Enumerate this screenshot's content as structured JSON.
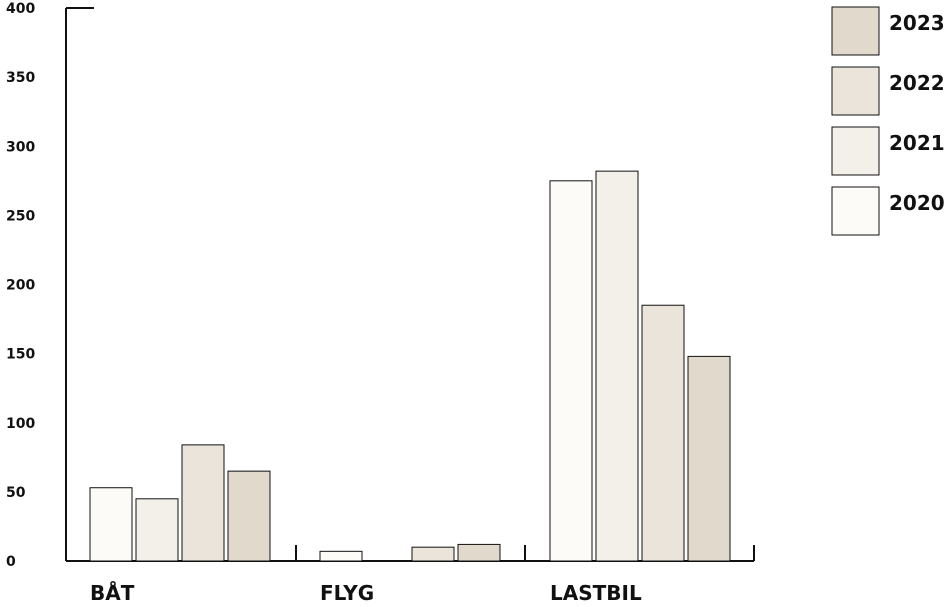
{
  "chart_data": {
    "type": "bar",
    "categories": [
      "BÅT",
      "FLYG",
      "LASTBIL"
    ],
    "series": [
      {
        "name": "2020",
        "values": [
          53,
          7,
          275
        ],
        "color": "#fcfbf8"
      },
      {
        "name": "2021",
        "values": [
          45,
          0,
          282
        ],
        "color": "#f3f0e9"
      },
      {
        "name": "2022",
        "values": [
          84,
          10,
          185
        ],
        "color": "#ebe4da"
      },
      {
        "name": "2023",
        "values": [
          65,
          12,
          148
        ],
        "color": "#e1d9cc"
      }
    ],
    "ylim": [
      0,
      400
    ],
    "yticks": [
      0,
      50,
      100,
      150,
      200,
      250,
      300,
      350,
      400
    ],
    "ytick_labels": [
      "0",
      "50",
      "100",
      "150",
      "200",
      "250",
      "300",
      "350",
      "400"
    ],
    "legend_order": [
      "2023",
      "2022",
      "2021",
      "2020"
    ],
    "legend_position": "top-right",
    "grid": false
  }
}
